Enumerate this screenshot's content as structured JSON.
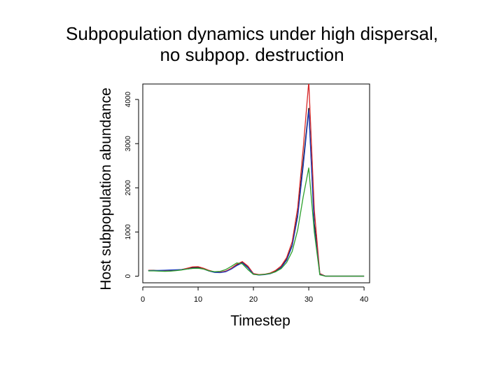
{
  "chart_data": {
    "type": "line",
    "title_line1": "Subpopulation dynamics under high dispersal,",
    "title_line2": "no subpop. destruction",
    "xlabel": "Timestep",
    "ylabel": "Host subpopulation abundance",
    "xlim": [
      0,
      41
    ],
    "ylim": [
      -150,
      4350
    ],
    "xticks": [
      0,
      10,
      20,
      30,
      40
    ],
    "yticks": [
      0,
      1000,
      2000,
      3000,
      4000
    ],
    "grid": false,
    "series": [
      {
        "color": "#000000",
        "x": [
          1,
          2,
          3,
          4,
          5,
          6,
          7,
          8,
          9,
          10,
          11,
          12,
          13,
          14,
          15,
          16,
          17,
          18,
          19,
          20,
          21,
          22,
          23,
          24,
          25,
          26,
          27,
          28,
          29,
          30,
          31,
          32,
          33,
          34,
          35,
          36,
          37,
          38,
          39,
          40
        ],
        "y": [
          130,
          130,
          125,
          120,
          125,
          135,
          150,
          170,
          195,
          200,
          170,
          120,
          90,
          85,
          110,
          170,
          260,
          310,
          200,
          50,
          30,
          40,
          60,
          110,
          200,
          380,
          700,
          1400,
          2600,
          3800,
          1200,
          50,
          0,
          0,
          0,
          0,
          0,
          0,
          0,
          0
        ]
      },
      {
        "color": "#d62728",
        "x": [
          1,
          2,
          3,
          4,
          5,
          6,
          7,
          8,
          9,
          10,
          11,
          12,
          13,
          14,
          15,
          16,
          17,
          18,
          19,
          20,
          21,
          22,
          23,
          24,
          25,
          26,
          27,
          28,
          29,
          30,
          31,
          32,
          33,
          34,
          35,
          36,
          37,
          38,
          39,
          40
        ],
        "y": [
          130,
          125,
          120,
          115,
          120,
          130,
          150,
          180,
          210,
          215,
          180,
          130,
          95,
          90,
          115,
          180,
          270,
          330,
          230,
          60,
          35,
          45,
          70,
          130,
          230,
          420,
          780,
          1550,
          2900,
          4400,
          1500,
          60,
          0,
          0,
          0,
          0,
          0,
          0,
          0,
          0
        ]
      },
      {
        "color": "#1f3fbf",
        "x": [
          1,
          2,
          3,
          4,
          5,
          6,
          7,
          8,
          9,
          10,
          11,
          12,
          13,
          14,
          15,
          16,
          17,
          18,
          19,
          20,
          21,
          22,
          23,
          24,
          25,
          26,
          27,
          28,
          29,
          30,
          31,
          32,
          33,
          34,
          35,
          36,
          37,
          38,
          39,
          40
        ],
        "y": [
          125,
          125,
          130,
          135,
          140,
          145,
          150,
          160,
          180,
          185,
          160,
          115,
          85,
          80,
          100,
          160,
          240,
          300,
          190,
          45,
          25,
          35,
          55,
          100,
          190,
          360,
          680,
          1350,
          2500,
          3750,
          1100,
          40,
          0,
          0,
          0,
          0,
          0,
          0,
          0,
          0
        ]
      },
      {
        "color": "#2ca02c",
        "x": [
          1,
          2,
          3,
          4,
          5,
          6,
          7,
          8,
          9,
          10,
          11,
          12,
          13,
          14,
          15,
          16,
          17,
          18,
          19,
          20,
          21,
          22,
          23,
          24,
          25,
          26,
          27,
          28,
          29,
          30,
          31,
          32,
          33,
          34,
          35,
          36,
          37,
          38,
          39,
          40
        ],
        "y": [
          120,
          120,
          115,
          110,
          115,
          125,
          140,
          160,
          175,
          180,
          160,
          120,
          100,
          110,
          150,
          220,
          300,
          280,
          150,
          40,
          30,
          40,
          60,
          100,
          170,
          310,
          560,
          1050,
          1800,
          2450,
          1000,
          30,
          0,
          0,
          0,
          0,
          0,
          0,
          0,
          0
        ]
      }
    ]
  }
}
